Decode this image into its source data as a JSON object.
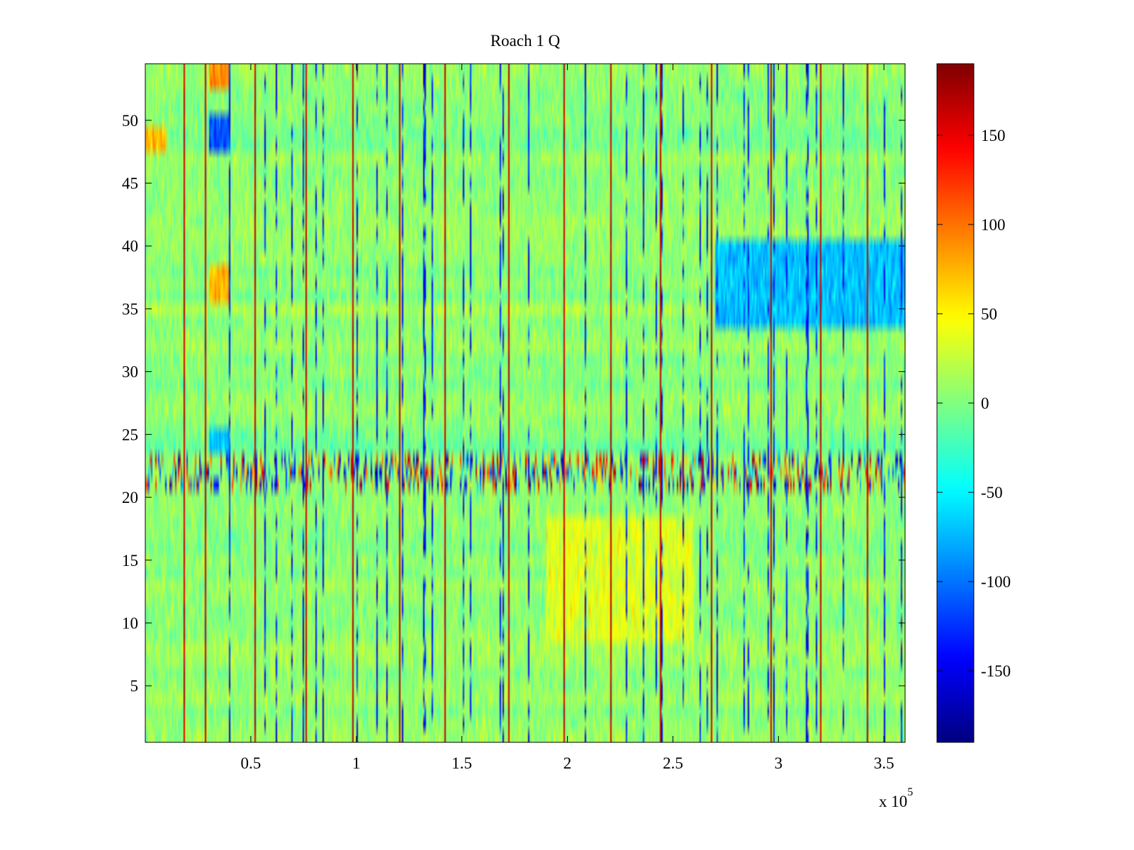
{
  "chart_data": {
    "type": "heatmap",
    "title": "Roach 1 Q",
    "xlabel": "",
    "ylabel": "",
    "x_range": [
      0,
      360000
    ],
    "y_range": [
      0.5,
      54.5
    ],
    "x_ticks": [
      50000,
      100000,
      150000,
      200000,
      250000,
      300000,
      350000
    ],
    "x_tick_labels": [
      "0.5",
      "1",
      "1.5",
      "2",
      "2.5",
      "3",
      "3.5"
    ],
    "x_exponent_label": "x 10",
    "x_exponent_power": "5",
    "y_ticks": [
      5,
      10,
      15,
      20,
      25,
      30,
      35,
      40,
      45,
      50
    ],
    "y_tick_labels": [
      "5",
      "10",
      "15",
      "20",
      "25",
      "30",
      "35",
      "40",
      "45",
      "50"
    ],
    "rows": 54,
    "colormap": "jet",
    "clim": [
      -190,
      190
    ],
    "colorbar_ticks": [
      150,
      100,
      50,
      0,
      -50,
      -100,
      -150
    ],
    "colorbar_tick_labels": [
      "150",
      "100",
      "50",
      "0",
      "-50",
      "-100",
      "-150"
    ],
    "vertical_spikes_x": [
      18000,
      28000,
      52000,
      76000,
      98000,
      120000,
      142000,
      172000,
      198000,
      220000,
      244000,
      268000,
      296000,
      320000,
      342000
    ],
    "features": [
      {
        "x_range": [
          270000,
          360000
        ],
        "y_range": [
          34,
          40
        ],
        "level": -70
      },
      {
        "x_range": [
          30000,
          40000
        ],
        "y_range": [
          48,
          50
        ],
        "level": -110
      },
      {
        "x_range": [
          30000,
          40000
        ],
        "y_range": [
          36,
          38
        ],
        "level": 70
      },
      {
        "x_range": [
          30000,
          40000
        ],
        "y_range": [
          53,
          54
        ],
        "level": 90
      },
      {
        "x_range": [
          0,
          10000
        ],
        "y_range": [
          48,
          49
        ],
        "level": 70
      },
      {
        "x_range": [
          30000,
          40000
        ],
        "y_range": [
          24,
          25
        ],
        "level": -70
      },
      {
        "x_range": [
          190000,
          260000
        ],
        "y_range": [
          9,
          18
        ],
        "level": 35
      }
    ],
    "noisy_rows": [
      21,
      22,
      23
    ],
    "grid": false,
    "colorbar_position": "right"
  }
}
